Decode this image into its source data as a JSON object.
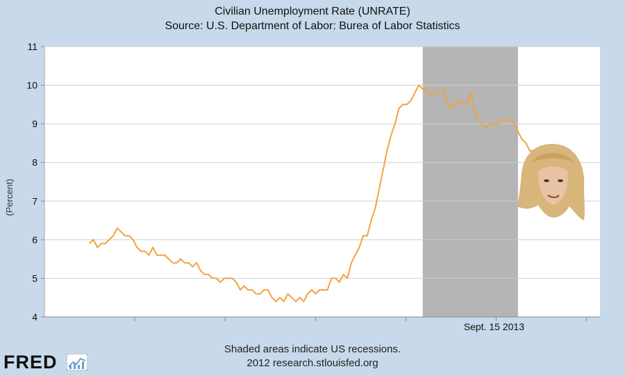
{
  "chart_data": {
    "type": "line",
    "title": "Civilian Unemployment Rate (UNRATE)",
    "subtitle": "Source: U.S. Department of Labor: Burea of Labor Statistics",
    "ylabel": "(Percent)",
    "xlabel": "",
    "ylim": [
      4,
      11
    ],
    "yticks": [
      4,
      5,
      6,
      7,
      8,
      9,
      10,
      11
    ],
    "x_tick_labels": [
      "",
      "",
      "",
      "",
      "Sept. 15 2013",
      ""
    ],
    "grid": true,
    "line_color": "#f0a340",
    "recession_color": "#b5b5b5",
    "x_index_range": [
      0,
      105
    ],
    "recession": {
      "start": 71.5,
      "end": 89.5
    },
    "series": [
      {
        "values": [
          5.9,
          6.0,
          5.8,
          5.9,
          5.9,
          6.0,
          6.1,
          6.3,
          6.2,
          6.1,
          6.1,
          6.0,
          5.8,
          5.7,
          5.7,
          5.6,
          5.8,
          5.6,
          5.6,
          5.6,
          5.5,
          5.4,
          5.4,
          5.5,
          5.4,
          5.4,
          5.3,
          5.4,
          5.2,
          5.1,
          5.1,
          5.0,
          5.0,
          4.9,
          5.0,
          5.0,
          5.0,
          4.9,
          4.7,
          4.8,
          4.7,
          4.7,
          4.6,
          4.6,
          4.7,
          4.7,
          4.5,
          4.4,
          4.5,
          4.4,
          4.6,
          4.5,
          4.4,
          4.5,
          4.4,
          4.6,
          4.7,
          4.6,
          4.7,
          4.7,
          4.7,
          5.0,
          5.0,
          4.9,
          5.1,
          5.0,
          5.4,
          5.6,
          5.8,
          6.1,
          6.1,
          6.5,
          6.8,
          7.3,
          7.8,
          8.3,
          8.7,
          9.0,
          9.4,
          9.5,
          9.5,
          9.6,
          9.8,
          10.0,
          9.9,
          9.9,
          9.7,
          9.8,
          9.8,
          9.9,
          9.6,
          9.4,
          9.5,
          9.6,
          9.5,
          9.5,
          9.8,
          9.4,
          9.1,
          9.0,
          8.9,
          9.0,
          9.0,
          9.0,
          9.1,
          9.1,
          9.1,
          9.0,
          8.8,
          8.6,
          8.5,
          8.3,
          8.3,
          8.2,
          8.1,
          8.2,
          8.2,
          8.2,
          8.3,
          8.1
        ]
      }
    ]
  },
  "footer": {
    "line1": "Shaded areas indicate US recessions.",
    "line2": "2012 research.stlouisfed.org"
  },
  "logo": {
    "text": "FRED"
  }
}
